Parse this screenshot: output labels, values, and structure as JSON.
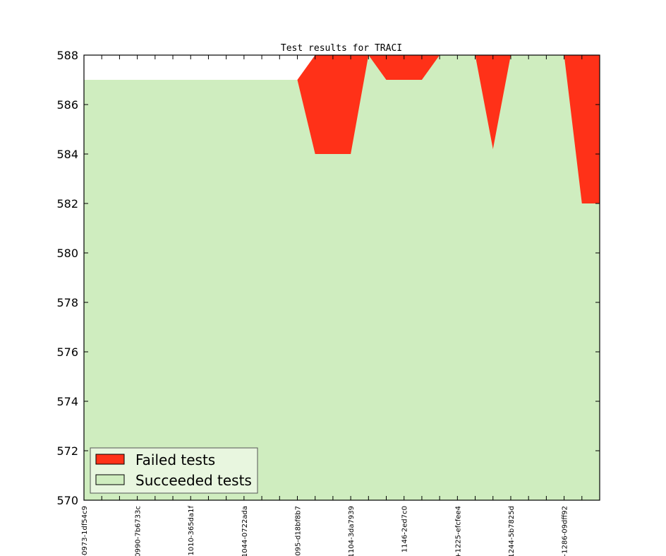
{
  "chart_data": {
    "type": "area",
    "title": "Test results for TRACI",
    "xlabel": "",
    "ylabel": "",
    "ylim": [
      570,
      588
    ],
    "yticks": [
      570,
      572,
      574,
      576,
      578,
      580,
      582,
      584,
      586,
      588
    ],
    "xtick_labels": [
      "-0973-1df54c9",
      "0990-7b6733c",
      "-1010-365da1f",
      "1044-0722ada",
      ".095-d18bf8b7",
      "1104-3da7939",
      "1146-2ed7c0",
      "+1225-efcfee4",
      "1244-5b7825d",
      "+1286-09dff92"
    ],
    "x_count": 30,
    "series": [
      {
        "name": "Failed tests",
        "color": "#ff3118",
        "values": [
          587,
          587,
          587,
          587,
          587,
          587,
          587,
          587,
          587,
          587,
          587,
          587,
          587,
          588,
          588,
          588,
          588,
          588,
          588,
          588,
          588,
          588,
          588,
          588,
          588,
          588,
          588,
          588,
          588,
          588
        ]
      },
      {
        "name": "Succeeded tests",
        "color": "#cfedbf",
        "values": [
          587,
          587,
          587,
          587,
          587,
          587,
          587,
          587,
          587,
          587,
          587,
          587,
          587,
          584,
          584,
          584,
          588,
          587,
          587,
          587,
          588,
          588,
          588,
          584.2,
          588,
          588,
          588,
          588,
          582,
          582
        ]
      }
    ],
    "legend": {
      "placement": "lower-left",
      "entries": [
        "Failed tests",
        "Succeeded tests"
      ]
    },
    "grid": false
  }
}
